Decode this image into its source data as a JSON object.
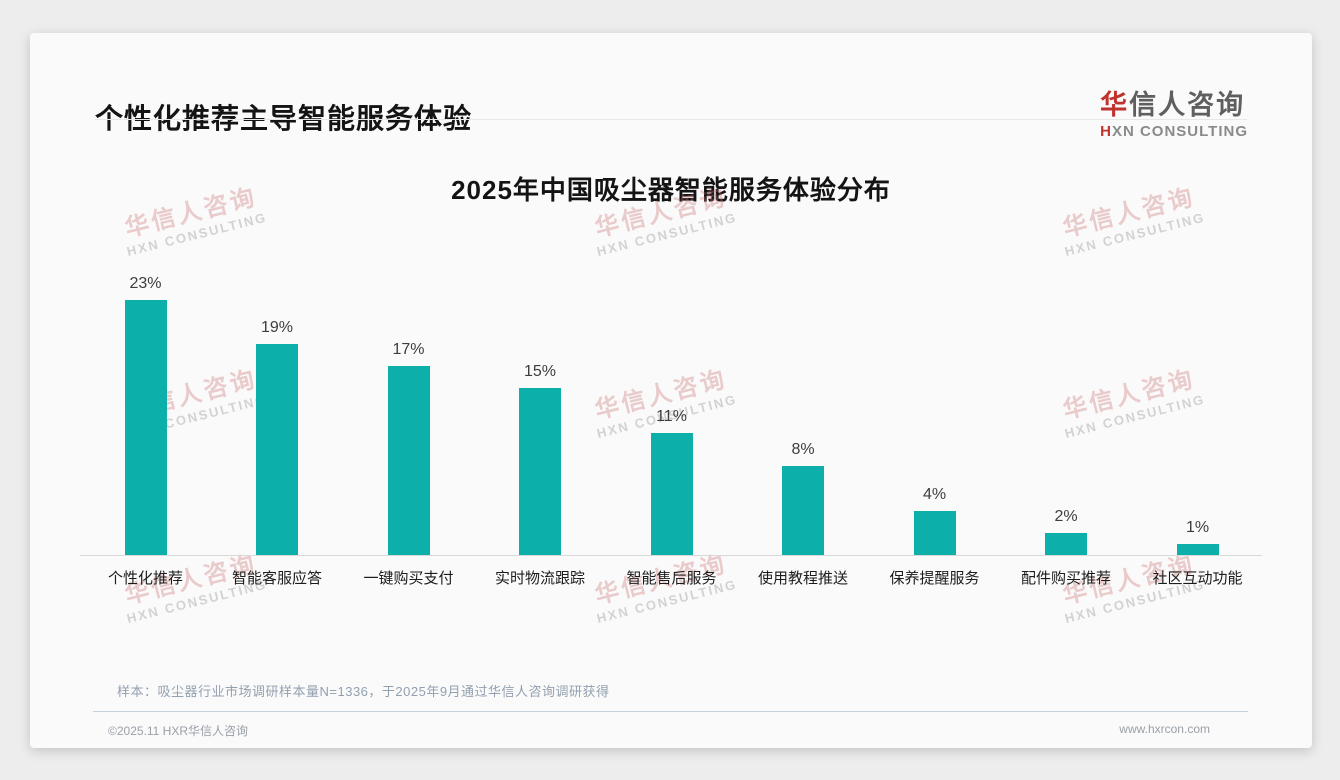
{
  "header": {
    "title": "个性化推荐主导智能服务体验"
  },
  "logo": {
    "cn_first": "华",
    "cn_rest": "信人咨询",
    "en_first": "H",
    "en_rest": "XN CONSULTING",
    "accent_color": "#c0322e"
  },
  "watermark": {
    "line1": "华信人咨询",
    "line2": "HXN CONSULTING"
  },
  "chart_data": {
    "type": "bar",
    "title": "2025年中国吸尘器智能服务体验分布",
    "categories": [
      "个性化推荐",
      "智能客服应答",
      "一键购买支付",
      "实时物流跟踪",
      "智能售后服务",
      "使用教程推送",
      "保养提醒服务",
      "配件购买推荐",
      "社区互动功能"
    ],
    "values": [
      23,
      19,
      17,
      15,
      11,
      8,
      4,
      2,
      1
    ],
    "value_labels": [
      "23%",
      "19%",
      "17%",
      "15%",
      "11%",
      "8%",
      "4%",
      "2%",
      "1%"
    ],
    "unit": "%",
    "bar_color": "#0cafa9",
    "ylim": [
      0,
      25
    ],
    "grid": false,
    "legend": "none",
    "xlabel": "",
    "ylabel": ""
  },
  "footnote": {
    "text": "样本：吸尘器行业市场调研样本量N=1336，于2025年9月通过华信人咨询调研获得"
  },
  "footer": {
    "left": "©2025.11 HXR华信人咨询",
    "right": "www.hxrcon.com"
  }
}
